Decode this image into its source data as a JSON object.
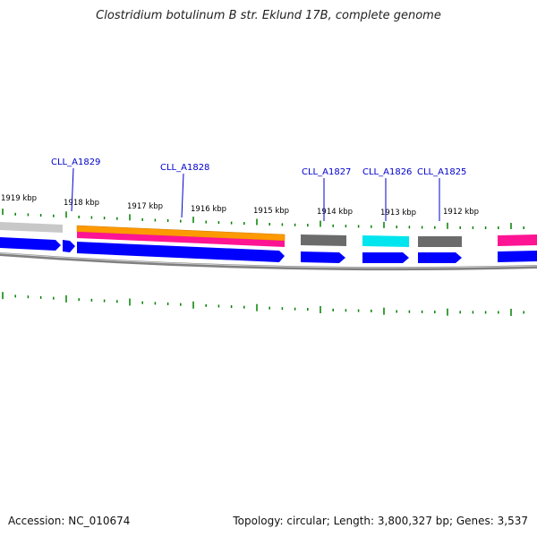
{
  "title": "Clostridium botulinum B str. Eklund 17B, complete genome",
  "footer": {
    "accession": "Accession: NC_010674",
    "summary": "Topology: circular; Length: 3,800,327 bp; Genes: 3,537"
  },
  "colors": {
    "backbone": "#808080",
    "tick": "#008000",
    "forward_cds": "#0000ff",
    "orange_feature": "#ff9900",
    "pink_feature": "#ff1493",
    "cyan_feature": "#00e5ee",
    "gray_feature": "#6b6b6b",
    "label_line": "#0000cc"
  },
  "kbp_labels": [
    "1919 kbp",
    "1918 kbp",
    "1917 kbp",
    "1916 kbp",
    "1915 kbp",
    "1914 kbp",
    "1913 kbp",
    "1912 kbp"
  ],
  "gene_labels": [
    "CLL_A1829",
    "CLL_A1828",
    "CLL_A1827",
    "CLL_A1826",
    "CLL_A1825"
  ]
}
